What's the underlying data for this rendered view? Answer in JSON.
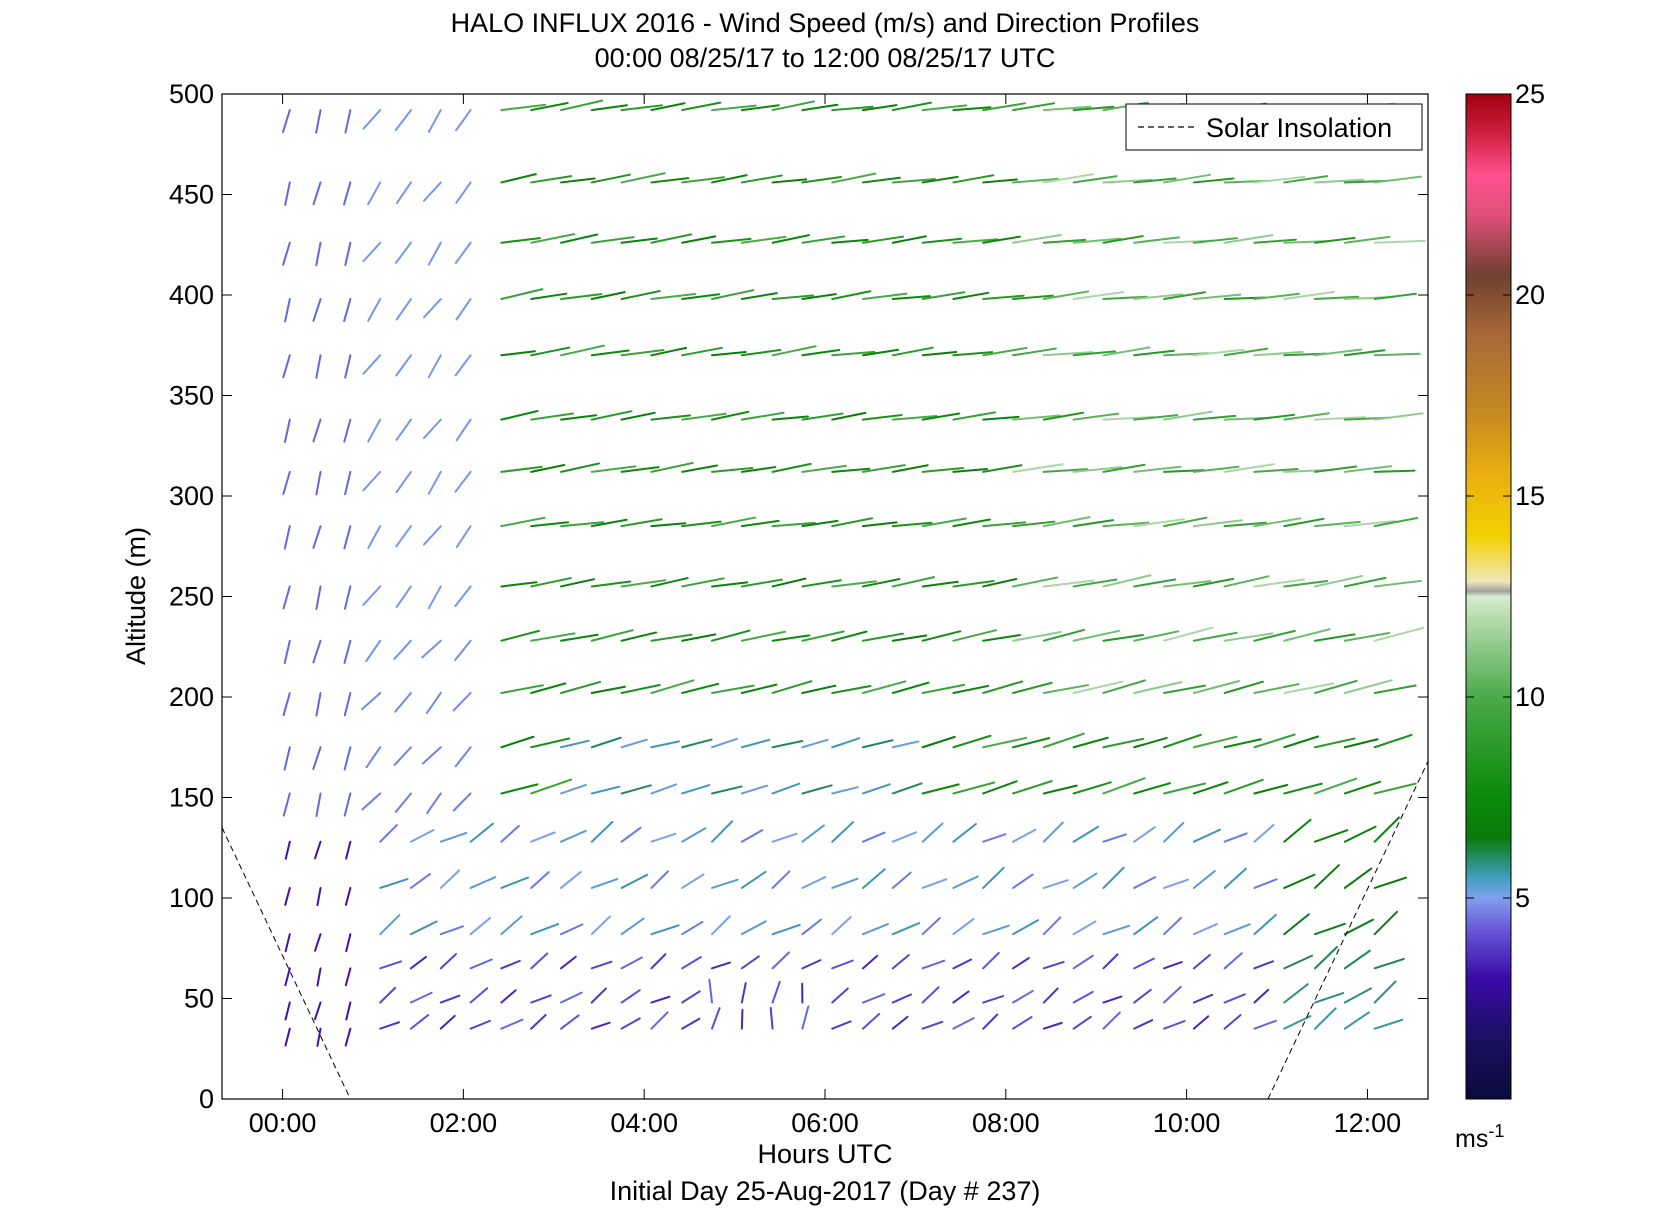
{
  "chart_data": {
    "type": "vector-field",
    "title": "HALO INFLUX 2016 - Wind Speed (m/s) and Direction Profiles",
    "subtitle": "00:00 08/25/17 to 12:00 08/25/17  UTC",
    "xlabel": "Hours UTC",
    "xlabel2": "Initial Day 25-Aug-2017 (Day # 237)",
    "ylabel": "Altitude (m)",
    "xlim": [
      -0.67,
      12.67
    ],
    "ylim": [
      0,
      500
    ],
    "xticks": [
      0,
      2,
      4,
      6,
      8,
      10,
      12
    ],
    "xtick_labels": [
      "00:00",
      "02:00",
      "04:00",
      "06:00",
      "08:00",
      "10:00",
      "12:00"
    ],
    "yticks": [
      0,
      50,
      100,
      150,
      200,
      250,
      300,
      350,
      400,
      450,
      500
    ],
    "ytick_labels": [
      "0",
      "50",
      "100",
      "150",
      "200",
      "250",
      "300",
      "350",
      "400",
      "450",
      "500"
    ],
    "colorbar": {
      "range": [
        0,
        25
      ],
      "ticks": [
        5,
        10,
        15,
        20,
        25
      ],
      "tick_labels": [
        "5",
        "10",
        "15",
        "20",
        "25"
      ],
      "unit_label": "ms",
      "unit_exp": "-1"
    },
    "legend": {
      "position": "top-right",
      "entries": [
        "Solar Insolation"
      ]
    },
    "altitudes": [
      35,
      48,
      65,
      82,
      105,
      128,
      152,
      175,
      202,
      228,
      255,
      285,
      312,
      338,
      370,
      398,
      426,
      456,
      492
    ],
    "times": [
      0.08,
      0.42,
      0.75,
      1.08,
      1.42,
      1.75,
      2.08,
      2.42,
      2.75,
      3.08,
      3.42,
      3.75,
      4.08,
      4.42,
      4.75,
      5.08,
      5.42,
      5.75,
      6.08,
      6.42,
      6.75,
      7.08,
      7.42,
      7.75,
      8.08,
      8.42,
      8.75,
      9.08,
      9.42,
      9.75,
      10.08,
      10.42,
      10.75,
      11.08,
      11.42,
      11.75,
      12.08
    ],
    "wind_regimes": [
      {
        "time_range": [
          0.0,
          0.9
        ],
        "altitude_range": [
          0,
          500
        ],
        "direction": "from north",
        "speed_range": [
          2,
          4
        ]
      },
      {
        "time_range": [
          0.9,
          2.2
        ],
        "altitude_range": [
          250,
          500
        ],
        "direction": "from north-east",
        "speed_range": [
          4,
          5
        ]
      },
      {
        "time_range": [
          0.9,
          12.1
        ],
        "altitude_range": [
          0,
          130
        ],
        "direction": "from south-west",
        "speed_range": [
          2,
          6
        ]
      },
      {
        "time_range": [
          2.2,
          12.1
        ],
        "altitude_range": [
          130,
          500
        ],
        "direction": "from west",
        "speed_range": [
          6,
          11
        ]
      }
    ],
    "solar_insolation": [
      {
        "x": -0.67,
        "y": 135
      },
      {
        "x": 0.75,
        "y": 0
      },
      {
        "x": 10.9,
        "y": 0
      },
      {
        "x": 12.67,
        "y": 168
      }
    ]
  }
}
